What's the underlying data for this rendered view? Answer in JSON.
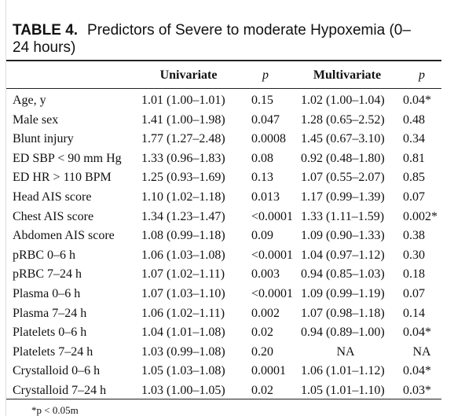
{
  "title": {
    "label": "TABLE 4.",
    "text": "Predictors of Severe to moderate Hypoxemia (0–24 hours)"
  },
  "table": {
    "header": [
      "Univariate",
      "p",
      "Multivariate",
      "p"
    ],
    "rows": [
      [
        "Age, y",
        "1.01 (1.00–1.01)",
        "0.15",
        "1.02 (1.00–1.04)",
        "0.04*"
      ],
      [
        "Male sex",
        "1.41 (1.00–1.98)",
        "0.047",
        "1.28 (0.65–2.52)",
        "0.48"
      ],
      [
        "Blunt injury",
        "1.77 (1.27–2.48)",
        "0.0008",
        "1.45 (0.67–3.10)",
        "0.34"
      ],
      [
        "ED SBP < 90 mm Hg",
        "1.33 (0.96–1.83)",
        "0.08",
        "0.92 (0.48–1.80)",
        "0.81"
      ],
      [
        "ED HR > 110 BPM",
        "1.25 (0.93–1.69)",
        "0.13",
        "1.07 (0.55–2.07)",
        "0.85"
      ],
      [
        "Head AIS score",
        "1.10 (1.02–1.18)",
        "0.013",
        "1.17 (0.99–1.39)",
        "0.07"
      ],
      [
        "Chest AIS score",
        "1.34 (1.23–1.47)",
        "<0.0001",
        "1.33 (1.11–1.59)",
        "0.002*"
      ],
      [
        "Abdomen AIS score",
        "1.08 (0.99–1.18)",
        "0.09",
        "1.09 (0.90–1.33)",
        "0.38"
      ],
      [
        "pRBC 0–6 h",
        "1.06 (1.03–1.08)",
        "<0.0001",
        "1.04 (0.97–1.12)",
        "0.30"
      ],
      [
        "pRBC 7–24 h",
        "1.07 (1.02–1.11)",
        "0.003",
        "0.94 (0.85–1.03)",
        "0.18"
      ],
      [
        "Plasma 0–6 h",
        "1.07 (1.03–1.10)",
        "<0.0001",
        "1.09 (0.99–1.19)",
        "0.07"
      ],
      [
        "Plasma 7–24 h",
        "1.06 (1.02–1.11)",
        "0.002",
        "1.07 (0.98–1.18)",
        "0.14"
      ],
      [
        "Platelets 0–6 h",
        "1.04 (1.01–1.08)",
        "0.02",
        "0.94 (0.89–1.00)",
        "0.04*"
      ],
      [
        "Platelets 7–24 h",
        "1.03 (0.99–1.08)",
        "0.20",
        "NA",
        "NA"
      ],
      [
        "Crystalloid 0–6 h",
        "1.05 (1.03–1.08)",
        "0.0001",
        "1.06 (1.01–1.12)",
        "0.04*"
      ],
      [
        "Crystalloid 7–24 h",
        "1.03 (1.00–1.05)",
        "0.02",
        "1.05 (1.01–1.10)",
        "0.03*"
      ]
    ]
  },
  "footnote": "*p < 0.05m"
}
